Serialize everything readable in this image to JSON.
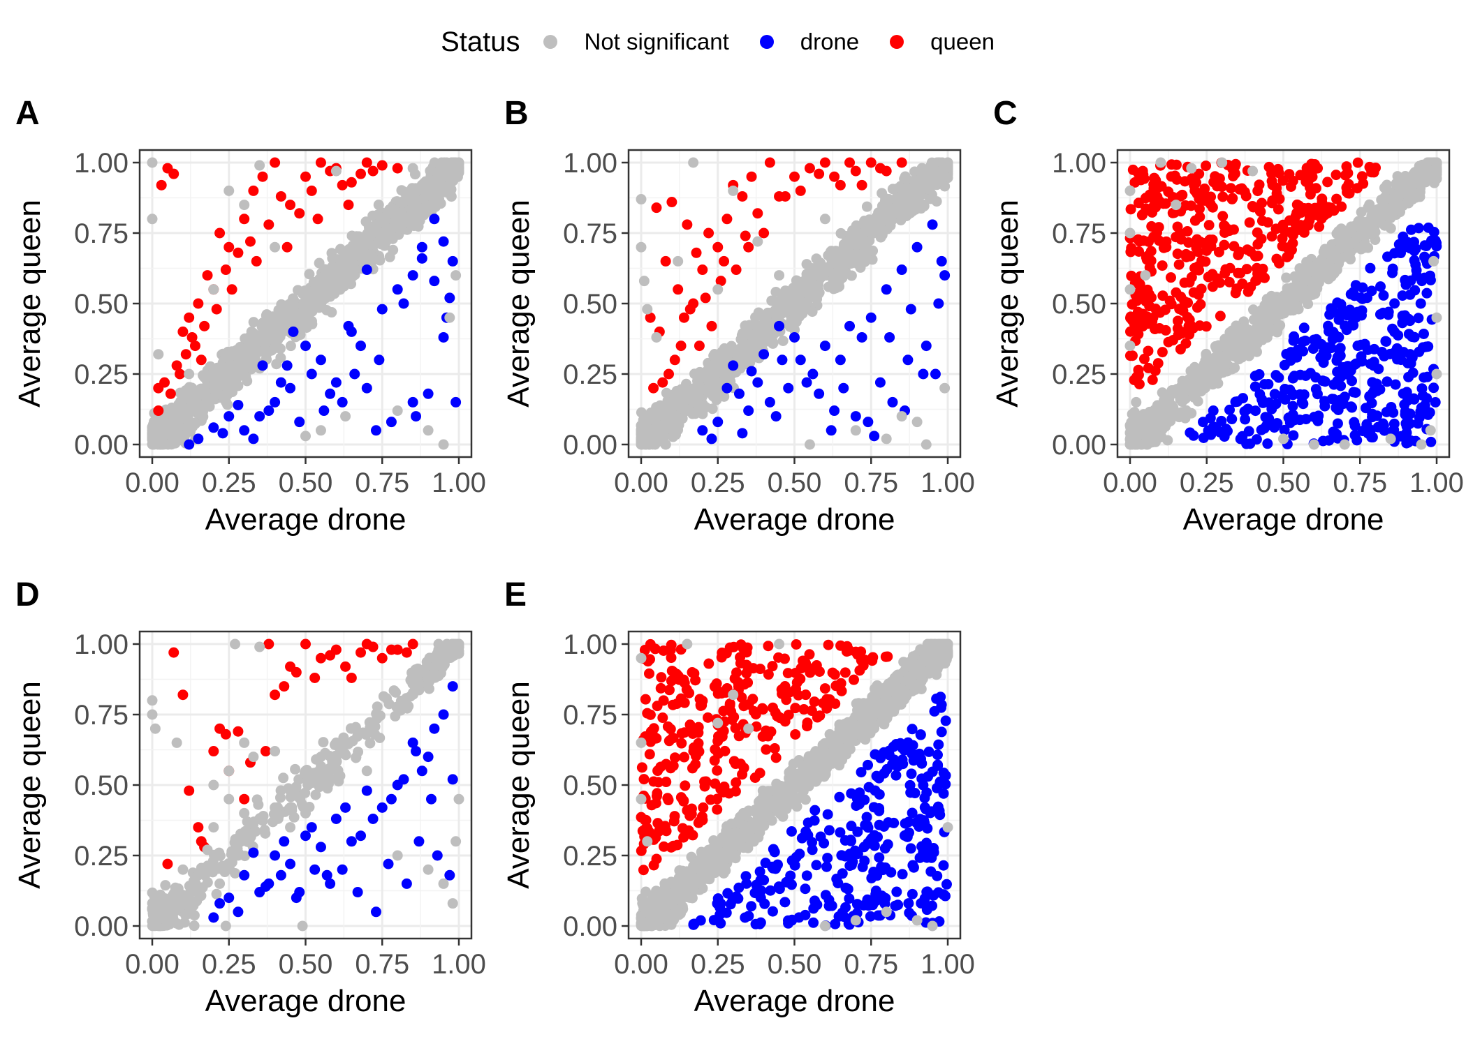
{
  "legend": {
    "title": "Status",
    "items": [
      {
        "label": "Not significant",
        "color": "#BEBEBE"
      },
      {
        "label": "drone",
        "color": "#0000FF"
      },
      {
        "label": "queen",
        "color": "#FF0000"
      }
    ]
  },
  "chart_data": [
    {
      "panel": "A",
      "type": "scatter",
      "xlabel": "Average drone",
      "ylabel": "Average queen",
      "xlim": [
        0,
        1
      ],
      "ylim": [
        0,
        1
      ],
      "xticks": [
        "0.00",
        "0.25",
        "0.50",
        "0.75",
        "1.00"
      ],
      "yticks": [
        "0.00",
        "0.25",
        "0.50",
        "0.75",
        "1.00"
      ],
      "grid": true,
      "series": [
        {
          "name": "Not significant",
          "color": "#BEBEBE",
          "diagonal_band": {
            "halfwidth": 0.13,
            "n": 900
          },
          "x": [
            0.0,
            0.0,
            0.02,
            0.0,
            0.3,
            0.55,
            0.8,
            0.95,
            0.63,
            0.5,
            0.2,
            0.4,
            0.97,
            0.99,
            0.85,
            0.6,
            0.35,
            0.9,
            0.25,
            0.12
          ],
          "y": [
            1.0,
            0.8,
            0.32,
            0.05,
            0.85,
            0.05,
            0.12,
            0.0,
            0.1,
            0.03,
            0.55,
            0.7,
            0.45,
            0.6,
            0.98,
            0.97,
            0.99,
            0.05,
            0.9,
            0.25
          ]
        },
        {
          "name": "drone",
          "color": "#0000FF",
          "x": [
            0.92,
            0.95,
            0.98,
            0.88,
            0.85,
            0.8,
            0.75,
            0.7,
            0.68,
            0.65,
            0.6,
            0.55,
            0.5,
            0.45,
            0.4,
            0.38,
            0.35,
            0.3,
            0.25,
            0.2,
            0.15,
            0.12,
            0.85,
            0.9,
            0.95,
            0.97,
            0.78,
            0.73,
            0.66,
            0.58,
            0.62,
            0.52,
            0.48,
            0.42,
            0.36,
            0.33,
            0.28,
            0.23,
            0.96,
            0.99,
            0.82,
            0.74,
            0.64,
            0.56,
            0.46,
            0.44,
            0.7,
            0.88,
            0.92,
            0.86
          ],
          "y": [
            0.8,
            0.72,
            0.65,
            0.7,
            0.6,
            0.55,
            0.48,
            0.62,
            0.35,
            0.4,
            0.22,
            0.3,
            0.35,
            0.2,
            0.15,
            0.12,
            0.1,
            0.05,
            0.1,
            0.06,
            0.02,
            0.0,
            0.15,
            0.18,
            0.38,
            0.52,
            0.08,
            0.05,
            0.25,
            0.18,
            0.15,
            0.25,
            0.08,
            0.22,
            0.28,
            0.02,
            0.14,
            0.04,
            0.45,
            0.15,
            0.5,
            0.3,
            0.42,
            0.12,
            0.4,
            0.28,
            0.2,
            0.66,
            0.58,
            0.1
          ]
        },
        {
          "name": "queen",
          "color": "#FF0000",
          "x": [
            0.05,
            0.03,
            0.07,
            0.1,
            0.12,
            0.15,
            0.18,
            0.2,
            0.22,
            0.25,
            0.3,
            0.33,
            0.36,
            0.4,
            0.45,
            0.5,
            0.55,
            0.6,
            0.65,
            0.7,
            0.75,
            0.8,
            0.02,
            0.04,
            0.08,
            0.11,
            0.14,
            0.17,
            0.21,
            0.24,
            0.28,
            0.32,
            0.38,
            0.42,
            0.48,
            0.52,
            0.58,
            0.62,
            0.68,
            0.72,
            0.02,
            0.06,
            0.09,
            0.13,
            0.16,
            0.26,
            0.34,
            0.44,
            0.54,
            0.64
          ],
          "y": [
            0.98,
            0.92,
            0.96,
            0.4,
            0.45,
            0.5,
            0.6,
            0.55,
            0.75,
            0.7,
            0.8,
            0.9,
            0.95,
            1.0,
            0.85,
            0.95,
            1.0,
            0.98,
            0.93,
            1.0,
            0.99,
            0.98,
            0.12,
            0.22,
            0.28,
            0.32,
            0.35,
            0.42,
            0.48,
            0.62,
            0.68,
            0.72,
            0.78,
            0.88,
            0.82,
            0.9,
            0.97,
            0.92,
            0.96,
            0.97,
            0.2,
            0.18,
            0.25,
            0.38,
            0.3,
            0.55,
            0.65,
            0.7,
            0.8,
            0.85
          ]
        }
      ]
    },
    {
      "panel": "B",
      "type": "scatter",
      "xlabel": "Average drone",
      "ylabel": "Average queen",
      "xlim": [
        0,
        1
      ],
      "ylim": [
        0,
        1
      ],
      "xticks": [
        "0.00",
        "0.25",
        "0.50",
        "0.75",
        "1.00"
      ],
      "yticks": [
        "0.00",
        "0.25",
        "0.50",
        "0.75",
        "1.00"
      ],
      "grid": true,
      "series": [
        {
          "name": "Not significant",
          "color": "#BEBEBE",
          "diagonal_band": {
            "halfwidth": 0.12,
            "n": 850
          },
          "x": [
            0.0,
            0.0,
            0.01,
            0.02,
            0.17,
            0.3,
            0.55,
            0.7,
            0.85,
            0.93,
            0.99,
            0.45,
            0.6,
            0.25,
            0.12,
            0.8,
            0.9,
            0.05,
            0.38
          ],
          "y": [
            0.87,
            0.7,
            0.58,
            0.48,
            1.0,
            0.9,
            0.0,
            0.05,
            0.1,
            0.0,
            0.2,
            0.6,
            0.8,
            0.55,
            0.65,
            0.02,
            0.08,
            0.38,
            0.72
          ]
        },
        {
          "name": "drone",
          "color": "#0000FF",
          "x": [
            0.95,
            0.98,
            0.9,
            0.85,
            0.88,
            0.8,
            0.75,
            0.72,
            0.68,
            0.65,
            0.6,
            0.56,
            0.52,
            0.48,
            0.45,
            0.42,
            0.38,
            0.35,
            0.32,
            0.3,
            0.25,
            0.2,
            0.97,
            0.93,
            0.87,
            0.82,
            0.78,
            0.7,
            0.62,
            0.58,
            0.5,
            0.44,
            0.4,
            0.36,
            0.33,
            0.28,
            0.23,
            0.99,
            0.92,
            0.86,
            0.76,
            0.66,
            0.54,
            0.46,
            0.63,
            0.74,
            0.81,
            0.96
          ],
          "y": [
            0.78,
            0.65,
            0.7,
            0.62,
            0.48,
            0.55,
            0.45,
            0.38,
            0.42,
            0.3,
            0.35,
            0.25,
            0.3,
            0.2,
            0.42,
            0.15,
            0.22,
            0.12,
            0.18,
            0.28,
            0.08,
            0.05,
            0.5,
            0.35,
            0.3,
            0.15,
            0.22,
            0.1,
            0.05,
            0.18,
            0.38,
            0.1,
            0.32,
            0.26,
            0.04,
            0.2,
            0.02,
            0.6,
            0.25,
            0.12,
            0.03,
            0.2,
            0.22,
            0.3,
            0.12,
            0.08,
            0.38,
            0.25
          ]
        },
        {
          "name": "queen",
          "color": "#FF0000",
          "x": [
            0.05,
            0.08,
            0.1,
            0.12,
            0.15,
            0.18,
            0.2,
            0.22,
            0.25,
            0.28,
            0.3,
            0.33,
            0.36,
            0.4,
            0.42,
            0.45,
            0.5,
            0.55,
            0.6,
            0.65,
            0.7,
            0.75,
            0.8,
            0.85,
            0.03,
            0.06,
            0.09,
            0.11,
            0.14,
            0.17,
            0.19,
            0.23,
            0.26,
            0.31,
            0.35,
            0.38,
            0.47,
            0.52,
            0.58,
            0.63,
            0.68,
            0.72,
            0.78,
            0.04,
            0.07,
            0.13,
            0.16,
            0.21,
            0.27,
            0.34
          ],
          "y": [
            0.84,
            0.65,
            0.86,
            0.55,
            0.78,
            0.68,
            0.62,
            0.75,
            0.7,
            0.8,
            0.92,
            0.88,
            0.95,
            0.75,
            1.0,
            0.88,
            0.95,
            0.98,
            1.0,
            0.92,
            0.97,
            1.0,
            0.97,
            1.0,
            0.45,
            0.4,
            0.25,
            0.3,
            0.45,
            0.5,
            0.35,
            0.42,
            0.58,
            0.62,
            0.7,
            0.82,
            0.88,
            0.9,
            0.96,
            0.95,
            1.0,
            0.92,
            0.98,
            0.2,
            0.22,
            0.35,
            0.48,
            0.52,
            0.65,
            0.74
          ]
        }
      ]
    },
    {
      "panel": "C",
      "type": "scatter",
      "xlabel": "Average drone",
      "ylabel": "Average queen",
      "xlim": [
        0,
        1
      ],
      "ylim": [
        0,
        1
      ],
      "xticks": [
        "0.00",
        "0.25",
        "0.50",
        "0.75",
        "1.00"
      ],
      "yticks": [
        "0.00",
        "0.25",
        "0.50",
        "0.75",
        "1.00"
      ],
      "grid": true,
      "series": [
        {
          "name": "Not significant",
          "color": "#BEBEBE",
          "diagonal_band": {
            "halfwidth": 0.1,
            "n": 900
          },
          "x": [
            0.0,
            0.0,
            0.0,
            0.0,
            0.02,
            0.1,
            0.2,
            0.3,
            0.98,
            1.0,
            1.0,
            0.99,
            0.95,
            0.7,
            0.5,
            0.05,
            0.15,
            0.4,
            0.6,
            0.85
          ],
          "y": [
            0.9,
            0.75,
            0.55,
            0.35,
            0.15,
            1.0,
            0.98,
            1.0,
            0.05,
            0.25,
            0.45,
            0.65,
            0.0,
            0.0,
            0.02,
            0.6,
            0.85,
            0.97,
            0.0,
            0.02
          ]
        },
        {
          "name": "drone",
          "color": "#0000FF",
          "upper_triangle_fill": false,
          "lower_triangle_fill": {
            "n": 500,
            "min_gap": 0.15
          }
        },
        {
          "name": "queen",
          "color": "#FF0000",
          "upper_triangle_fill": {
            "n": 500,
            "min_gap": 0.15
          }
        }
      ]
    },
    {
      "panel": "D",
      "type": "scatter",
      "xlabel": "Average drone",
      "ylabel": "Average queen",
      "xlim": [
        0,
        1
      ],
      "ylim": [
        0,
        1
      ],
      "xticks": [
        "0.00",
        "0.25",
        "0.50",
        "0.75",
        "1.00"
      ],
      "yticks": [
        "0.00",
        "0.25",
        "0.50",
        "0.75",
        "1.00"
      ],
      "grid": true,
      "series": [
        {
          "name": "Not significant",
          "color": "#BEBEBE",
          "diagonal_band": {
            "halfwidth": 0.12,
            "n": 260
          },
          "x": [
            0.0,
            0.0,
            0.01,
            0.08,
            0.1,
            0.15,
            0.2,
            0.25,
            0.27,
            0.3,
            0.33,
            0.35,
            0.4,
            0.45,
            0.5,
            0.55,
            0.6,
            0.65,
            0.7,
            0.2,
            0.25,
            0.3,
            0.35,
            0.4,
            0.45,
            0.5,
            0.98,
            0.99,
            1.0,
            0.95,
            0.9,
            0.8,
            0.49,
            0.24,
            0.12,
            0.05,
            0.03,
            0.18,
            0.22,
            0.28
          ],
          "y": [
            0.8,
            0.75,
            0.7,
            0.65,
            0.2,
            0.18,
            0.5,
            0.55,
            1.0,
            0.65,
            0.6,
            0.99,
            0.62,
            0.48,
            0.55,
            0.6,
            0.65,
            0.7,
            0.55,
            0.35,
            0.45,
            0.4,
            0.38,
            0.42,
            0.35,
            0.4,
            0.08,
            0.3,
            0.45,
            0.15,
            0.2,
            0.25,
            0.0,
            0.0,
            0.1,
            0.05,
            0.03,
            0.27,
            0.15,
            0.25
          ]
        },
        {
          "name": "drone",
          "color": "#0000FF",
          "x": [
            0.95,
            0.98,
            0.92,
            0.9,
            0.88,
            0.85,
            0.82,
            0.8,
            0.78,
            0.75,
            0.72,
            0.7,
            0.68,
            0.65,
            0.62,
            0.6,
            0.58,
            0.55,
            0.52,
            0.5,
            0.48,
            0.45,
            0.42,
            0.4,
            0.38,
            0.35,
            0.3,
            0.28,
            0.25,
            0.22,
            0.2,
            0.97,
            0.93,
            0.87,
            0.83,
            0.77,
            0.73,
            0.67,
            0.63,
            0.57,
            0.53,
            0.47,
            0.43,
            0.37,
            0.33,
            0.98,
            0.91,
            0.86
          ],
          "y": [
            0.75,
            0.85,
            0.7,
            0.6,
            0.55,
            0.65,
            0.52,
            0.5,
            0.45,
            0.42,
            0.38,
            0.48,
            0.32,
            0.3,
            0.2,
            0.38,
            0.15,
            0.28,
            0.35,
            0.32,
            0.12,
            0.22,
            0.18,
            0.25,
            0.15,
            0.12,
            0.18,
            0.05,
            0.1,
            0.08,
            0.03,
            0.18,
            0.25,
            0.3,
            0.15,
            0.22,
            0.05,
            0.12,
            0.42,
            0.18,
            0.2,
            0.1,
            0.3,
            0.14,
            0.26,
            0.52,
            0.45,
            0.62
          ]
        },
        {
          "name": "queen",
          "color": "#FF0000",
          "x": [
            0.07,
            0.1,
            0.12,
            0.15,
            0.16,
            0.2,
            0.22,
            0.25,
            0.28,
            0.3,
            0.32,
            0.38,
            0.4,
            0.45,
            0.5,
            0.55,
            0.6,
            0.65,
            0.7,
            0.75,
            0.8,
            0.85,
            0.05,
            0.17,
            0.24,
            0.37,
            0.43,
            0.47,
            0.53,
            0.58,
            0.63,
            0.68,
            0.72,
            0.78,
            0.83
          ],
          "y": [
            0.97,
            0.82,
            0.48,
            0.35,
            0.3,
            0.62,
            0.7,
            0.55,
            0.69,
            0.45,
            0.58,
            1.0,
            0.82,
            0.92,
            1.0,
            0.95,
            0.98,
            0.88,
            1.0,
            0.95,
            0.98,
            1.0,
            0.22,
            0.28,
            0.68,
            0.62,
            0.85,
            0.9,
            0.88,
            0.96,
            0.92,
            0.97,
            0.99,
            0.98,
            0.97
          ]
        }
      ]
    },
    {
      "panel": "E",
      "type": "scatter",
      "xlabel": "Average drone",
      "ylabel": "Average queen",
      "xlim": [
        0,
        1
      ],
      "ylim": [
        0,
        1
      ],
      "xticks": [
        "0.00",
        "0.25",
        "0.50",
        "0.75",
        "1.00"
      ],
      "yticks": [
        "0.00",
        "0.25",
        "0.50",
        "0.75",
        "1.00"
      ],
      "grid": true,
      "series": [
        {
          "name": "Not significant",
          "color": "#BEBEBE",
          "diagonal_band": {
            "halfwidth": 0.1,
            "n": 1000
          },
          "x": [
            0.0,
            0.0,
            0.0,
            0.02,
            0.3,
            0.35,
            0.9,
            0.95,
            1.0,
            0.6,
            0.7,
            0.15,
            0.45,
            0.8,
            0.25
          ],
          "y": [
            0.95,
            0.65,
            0.45,
            0.3,
            0.82,
            0.7,
            0.02,
            0.0,
            0.35,
            0.0,
            0.02,
            1.0,
            1.0,
            0.05,
            0.72
          ]
        },
        {
          "name": "drone",
          "color": "#0000FF",
          "lower_triangle_fill": {
            "n": 420,
            "min_gap": 0.15
          }
        },
        {
          "name": "queen",
          "color": "#FF0000",
          "upper_triangle_fill": {
            "n": 420,
            "min_gap": 0.15
          }
        }
      ]
    }
  ]
}
